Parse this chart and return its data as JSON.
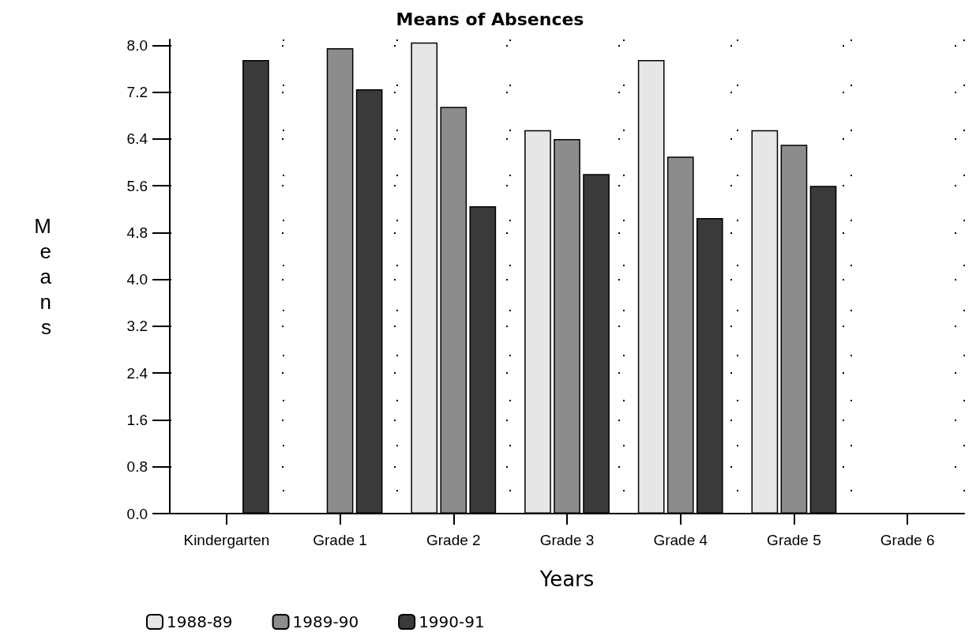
{
  "chart_data": {
    "type": "bar",
    "title": "Means of Absences",
    "xlabel": "Years",
    "ylabel": "Means",
    "categories": [
      "Kindergarten",
      "Grade 1",
      "Grade 2",
      "Grade 3",
      "Grade 4",
      "Grade 5",
      "Grade 6"
    ],
    "series": [
      {
        "name": "1988-89",
        "color": "#e6e6e6",
        "values": [
          null,
          null,
          8.05,
          6.55,
          7.75,
          6.55,
          null
        ]
      },
      {
        "name": "1989-90",
        "color": "#8c8c8c",
        "values": [
          null,
          7.95,
          6.95,
          6.4,
          6.1,
          6.3,
          null
        ]
      },
      {
        "name": "1990-91",
        "color": "#3a3a3a",
        "values": [
          7.75,
          7.25,
          5.25,
          5.8,
          5.05,
          5.6,
          null
        ]
      }
    ],
    "ylim": [
      0,
      8.1
    ],
    "yticks": [
      {
        "value": 0,
        "label": "0.0"
      },
      0.8,
      1.6,
      2.4,
      3.2,
      {
        "value": 4,
        "label": "4.0"
      },
      4.8,
      5.6,
      6.4,
      7.2,
      {
        "value": 8,
        "label": "8.0"
      }
    ],
    "grid": true,
    "legend": "bottom left"
  }
}
